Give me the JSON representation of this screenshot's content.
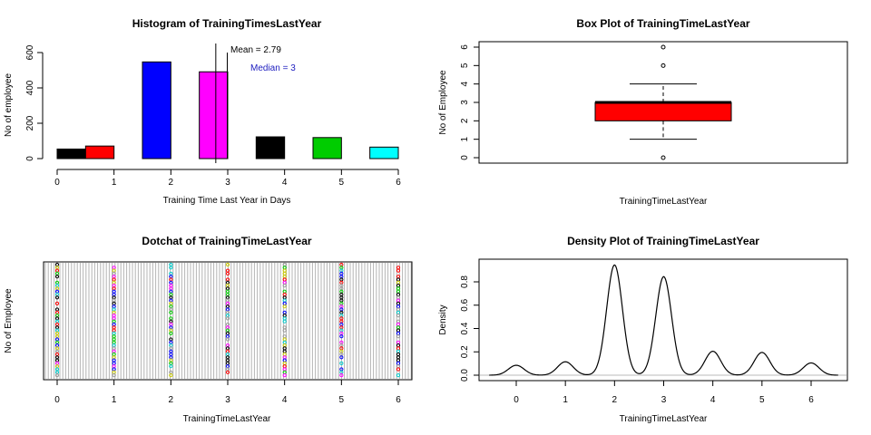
{
  "chart_data": [
    {
      "type": "bar",
      "title": "Histogram of TrainingTimesLastYear",
      "xlabel": "Training Time Last Year in Days",
      "ylabel": "No of employee",
      "xlim": [
        0,
        6
      ],
      "ylim": [
        0,
        600
      ],
      "x_ticks": [
        "0",
        "1",
        "2",
        "3",
        "4",
        "5",
        "6"
      ],
      "y_ticks": [
        "0",
        "200",
        "400",
        "600"
      ],
      "bars": [
        {
          "x0": 0.0,
          "x1": 0.5,
          "value": 54,
          "color": "#000000"
        },
        {
          "x0": 0.5,
          "x1": 1.0,
          "value": 71,
          "color": "#ff0000"
        },
        {
          "x0": 1.5,
          "x1": 2.0,
          "value": 547,
          "color": "#0000ff"
        },
        {
          "x0": 2.5,
          "x1": 3.0,
          "value": 491,
          "color": "#ff00ff"
        },
        {
          "x0": 3.5,
          "x1": 4.0,
          "value": 123,
          "color": "#000000"
        },
        {
          "x0": 4.5,
          "x1": 5.0,
          "value": 119,
          "color": "#00cc00"
        },
        {
          "x0": 5.5,
          "x1": 6.0,
          "value": 65,
          "color": "#00ffff"
        }
      ],
      "mean": 2.79,
      "median": 3,
      "annotations": {
        "mean_label": "Mean = 2.79",
        "median_label": "Median = 3"
      },
      "colors": {
        "median_text": "#2020c0"
      }
    },
    {
      "type": "box",
      "title": "Box Plot of TrainingTimeLastYear",
      "xlabel": "TrainingTimeLastYear",
      "ylabel": "No of Employee",
      "ylim": [
        0,
        6
      ],
      "y_ticks": [
        "0",
        "1",
        "2",
        "3",
        "4",
        "5",
        "6"
      ],
      "whisker_low": 1,
      "q1": 2,
      "median": 3,
      "q3": 3,
      "whisker_high": 4,
      "outliers": [
        0,
        5,
        6
      ],
      "fill": "#ff0000"
    },
    {
      "type": "scatter",
      "title": "Dotchat of TrainingTimeLastYear",
      "xlabel": "TrainingTimeLastYear",
      "ylabel": "No of Employee",
      "xlim": [
        0,
        6
      ],
      "x_ticks": [
        "0",
        "1",
        "2",
        "3",
        "4",
        "5",
        "6"
      ],
      "x_values": [
        0,
        1,
        2,
        3,
        4,
        5,
        6
      ],
      "palette": [
        "#000000",
        "#ff0000",
        "#00cc00",
        "#0000ff",
        "#00cccc",
        "#ff00ff",
        "#cccc00",
        "#999999"
      ]
    },
    {
      "type": "line",
      "title": "Density Plot of TrainingTimeLastYear",
      "xlabel": "TrainingTimeLastYear",
      "ylabel": "Density",
      "xlim": [
        -0.6,
        6.6
      ],
      "ylim": [
        0,
        0.95
      ],
      "x_ticks": [
        "0",
        "1",
        "2",
        "3",
        "4",
        "5",
        "6"
      ],
      "y_ticks": [
        "0.0",
        "0.2",
        "0.4",
        "0.6",
        "0.8"
      ],
      "peaks": [
        {
          "x": 0,
          "density": 0.085
        },
        {
          "x": 1,
          "density": 0.115
        },
        {
          "x": 2,
          "density": 0.945
        },
        {
          "x": 3,
          "density": 0.845
        },
        {
          "x": 4,
          "density": 0.205
        },
        {
          "x": 5,
          "density": 0.195
        },
        {
          "x": 6,
          "density": 0.105
        }
      ],
      "bandwidth": 0.16
    }
  ]
}
